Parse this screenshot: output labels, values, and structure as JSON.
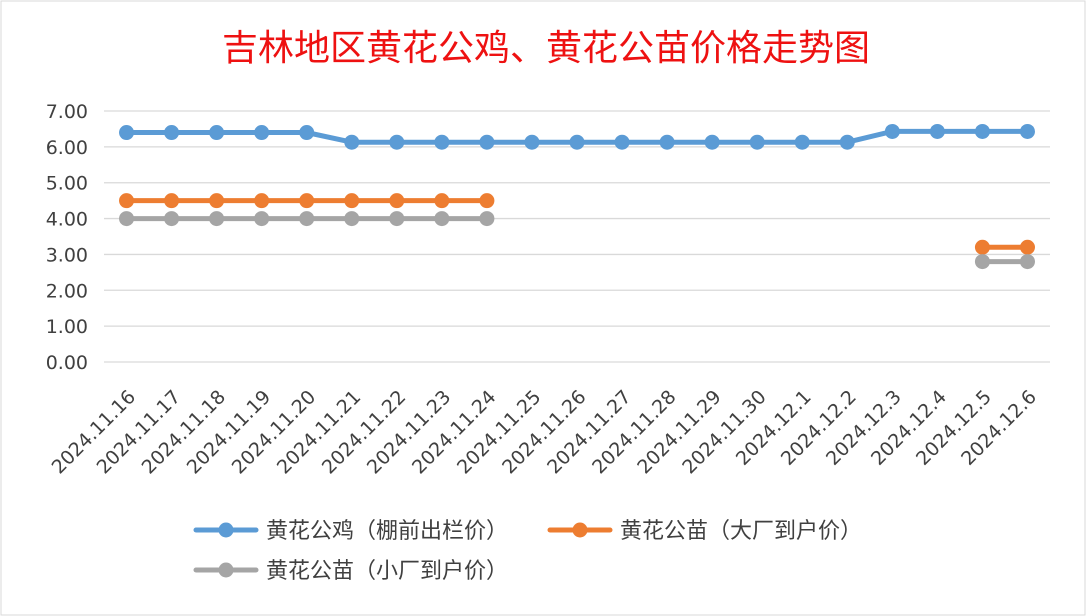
{
  "chart_data": {
    "type": "line",
    "title": "吉林地区黄花公鸡、黄花公苗价格走势图",
    "xlabel": "",
    "ylabel": "",
    "ylim": [
      0,
      7
    ],
    "yticks": [
      "0.00",
      "1.00",
      "2.00",
      "3.00",
      "4.00",
      "5.00",
      "6.00",
      "7.00"
    ],
    "grid": true,
    "legend_position": "bottom",
    "categories": [
      "2024.11.16",
      "2024.11.17",
      "2024.11.18",
      "2024.11.19",
      "2024.11.20",
      "2024.11.21",
      "2024.11.22",
      "2024.11.23",
      "2024.11.24",
      "2024.11.25",
      "2024.11.26",
      "2024.11.27",
      "2024.11.28",
      "2024.11.29",
      "2024.11.30",
      "2024.12.1",
      "2024.12.2",
      "2024.12.3",
      "2024.12.4",
      "2024.12.5",
      "2024.12.6"
    ],
    "series": [
      {
        "name": "黄花公鸡（棚前出栏价）",
        "color": "#5b9bd5",
        "values": [
          6.4,
          6.4,
          6.4,
          6.4,
          6.4,
          6.13,
          6.13,
          6.13,
          6.13,
          6.13,
          6.13,
          6.13,
          6.13,
          6.13,
          6.13,
          6.13,
          6.13,
          6.43,
          6.43,
          6.43,
          6.43
        ]
      },
      {
        "name": "黄花公苗（大厂到户价）",
        "color": "#ed7d31",
        "values": [
          4.5,
          4.5,
          4.5,
          4.5,
          4.5,
          4.5,
          4.5,
          4.5,
          4.5,
          null,
          null,
          null,
          null,
          null,
          null,
          null,
          null,
          null,
          null,
          3.2,
          3.2
        ]
      },
      {
        "name": "黄花公苗（小厂到户价）",
        "color": "#a5a5a5",
        "values": [
          4.0,
          4.0,
          4.0,
          4.0,
          4.0,
          4.0,
          4.0,
          4.0,
          4.0,
          null,
          null,
          null,
          null,
          null,
          null,
          null,
          null,
          null,
          null,
          2.8,
          2.8
        ]
      }
    ]
  }
}
